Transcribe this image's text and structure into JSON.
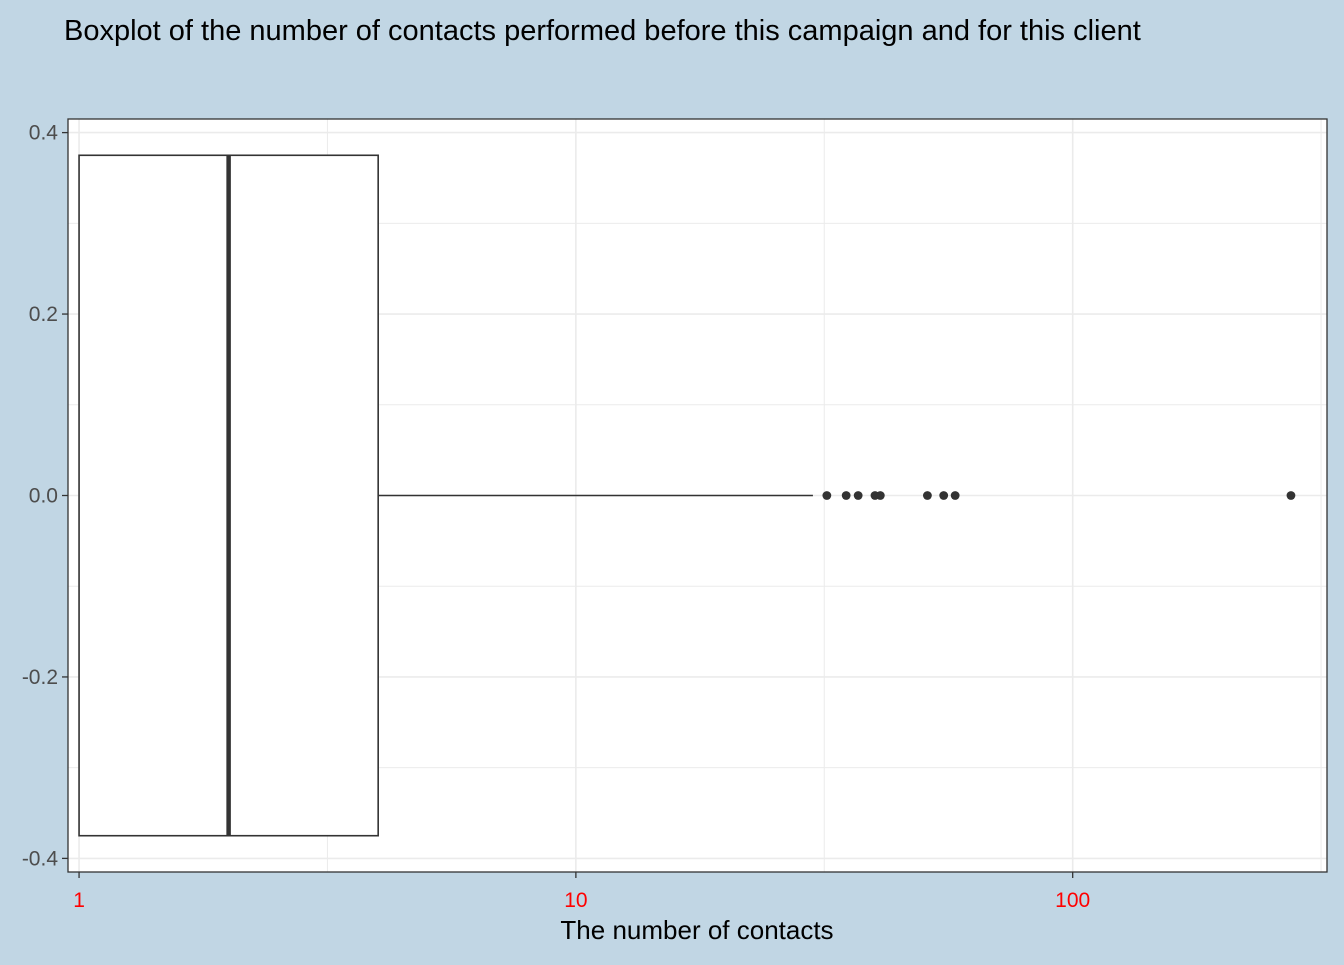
{
  "chart_data": {
    "type": "boxplot",
    "title": "Boxplot of the number of contacts performed before this campaign and for this client",
    "xlabel": "The number of contacts",
    "ylabel": "",
    "x_scale": "log10",
    "xlim": [
      0.95,
      325
    ],
    "ylim": [
      -0.415,
      0.415
    ],
    "x_ticks": [
      {
        "value": 1,
        "label": "1"
      },
      {
        "value": 10,
        "label": "10"
      },
      {
        "value": 100,
        "label": "100"
      }
    ],
    "y_ticks": [
      {
        "value": 0.4,
        "label": "0.4"
      },
      {
        "value": 0.2,
        "label": "0.2"
      },
      {
        "value": 0.0,
        "label": "0.0"
      },
      {
        "value": -0.2,
        "label": "-0.2"
      },
      {
        "value": -0.4,
        "label": "-0.4"
      }
    ],
    "x_minor_ticks": [
      3.162,
      31.62,
      316.2
    ],
    "y_minor_ticks": [
      0.3,
      0.1,
      -0.1,
      -0.3
    ],
    "grid": true,
    "box": {
      "y_center": 0.0,
      "half_width": 0.375,
      "lower_whisker": 1,
      "q1": 1,
      "median": 2,
      "q3": 4,
      "upper_whisker": 30
    },
    "outliers": [
      32,
      35,
      37,
      40,
      41,
      51,
      55,
      58,
      275
    ],
    "colors": {
      "background": "#c1d6e4",
      "panel": "#ffffff",
      "grid": "#ebebeb",
      "box": "#333333",
      "x_tick_labels": "#ff0000",
      "y_tick_labels": "#4d4d4d",
      "title": "#000000"
    }
  }
}
